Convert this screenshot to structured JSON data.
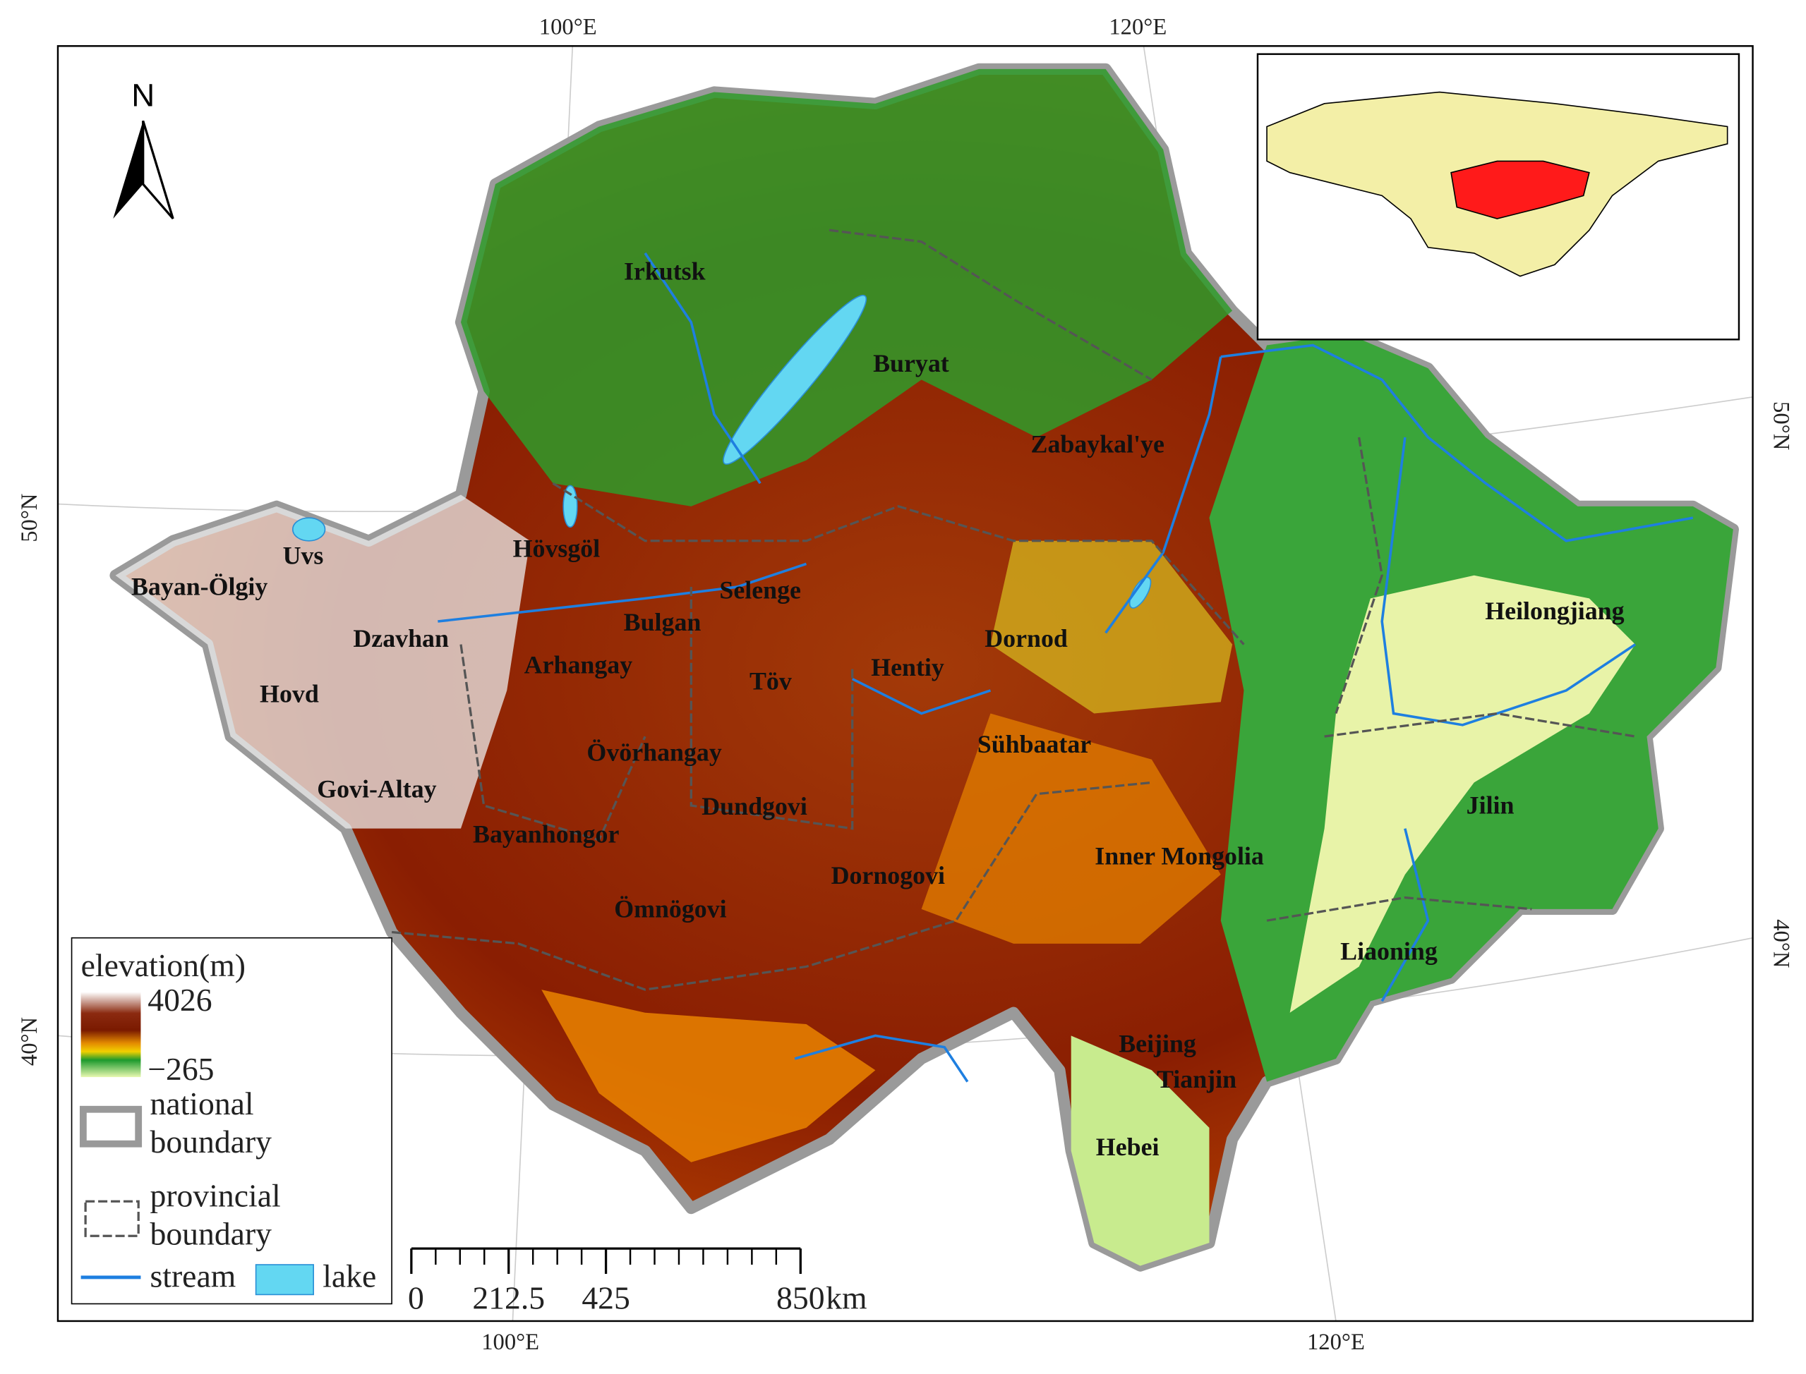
{
  "north_arrow": "N",
  "graticule": {
    "top": [
      "100°E",
      "120°E"
    ],
    "bottom": [
      "100°E",
      "120°E"
    ],
    "left": [
      "50°N",
      "40°N"
    ],
    "right": [
      "50°N",
      "40°N"
    ]
  },
  "regions": [
    "Irkutsk",
    "Buryat",
    "Zabaykal'ye",
    "Hövsgöl",
    "Uvs",
    "Bayan-Ölgiy",
    "Selenge",
    "Bulgan",
    "Dzavhan",
    "Dornod",
    "Heilongjiang",
    "Arhangay",
    "Töv",
    "Hentiy",
    "Hovd",
    "Sühbaatar",
    "Övörhangay",
    "Govi-Altay",
    "Jilin",
    "Dundgovi",
    "Bayanhongor",
    "Inner Mongolia",
    "Dornogovi",
    "Ömnögovi",
    "Liaoning",
    "Beijing",
    "Tianjin",
    "Hebei"
  ],
  "legend": {
    "title": "elevation(m)",
    "max": "4026",
    "min": "−265",
    "national_boundary": [
      "national",
      "boundary"
    ],
    "provincial_boundary": [
      "provincial",
      "boundary"
    ],
    "stream": "stream",
    "lake": "lake"
  },
  "scale_bar": {
    "ticks": [
      0,
      212.5,
      425,
      850
    ],
    "unit": "km"
  }
}
